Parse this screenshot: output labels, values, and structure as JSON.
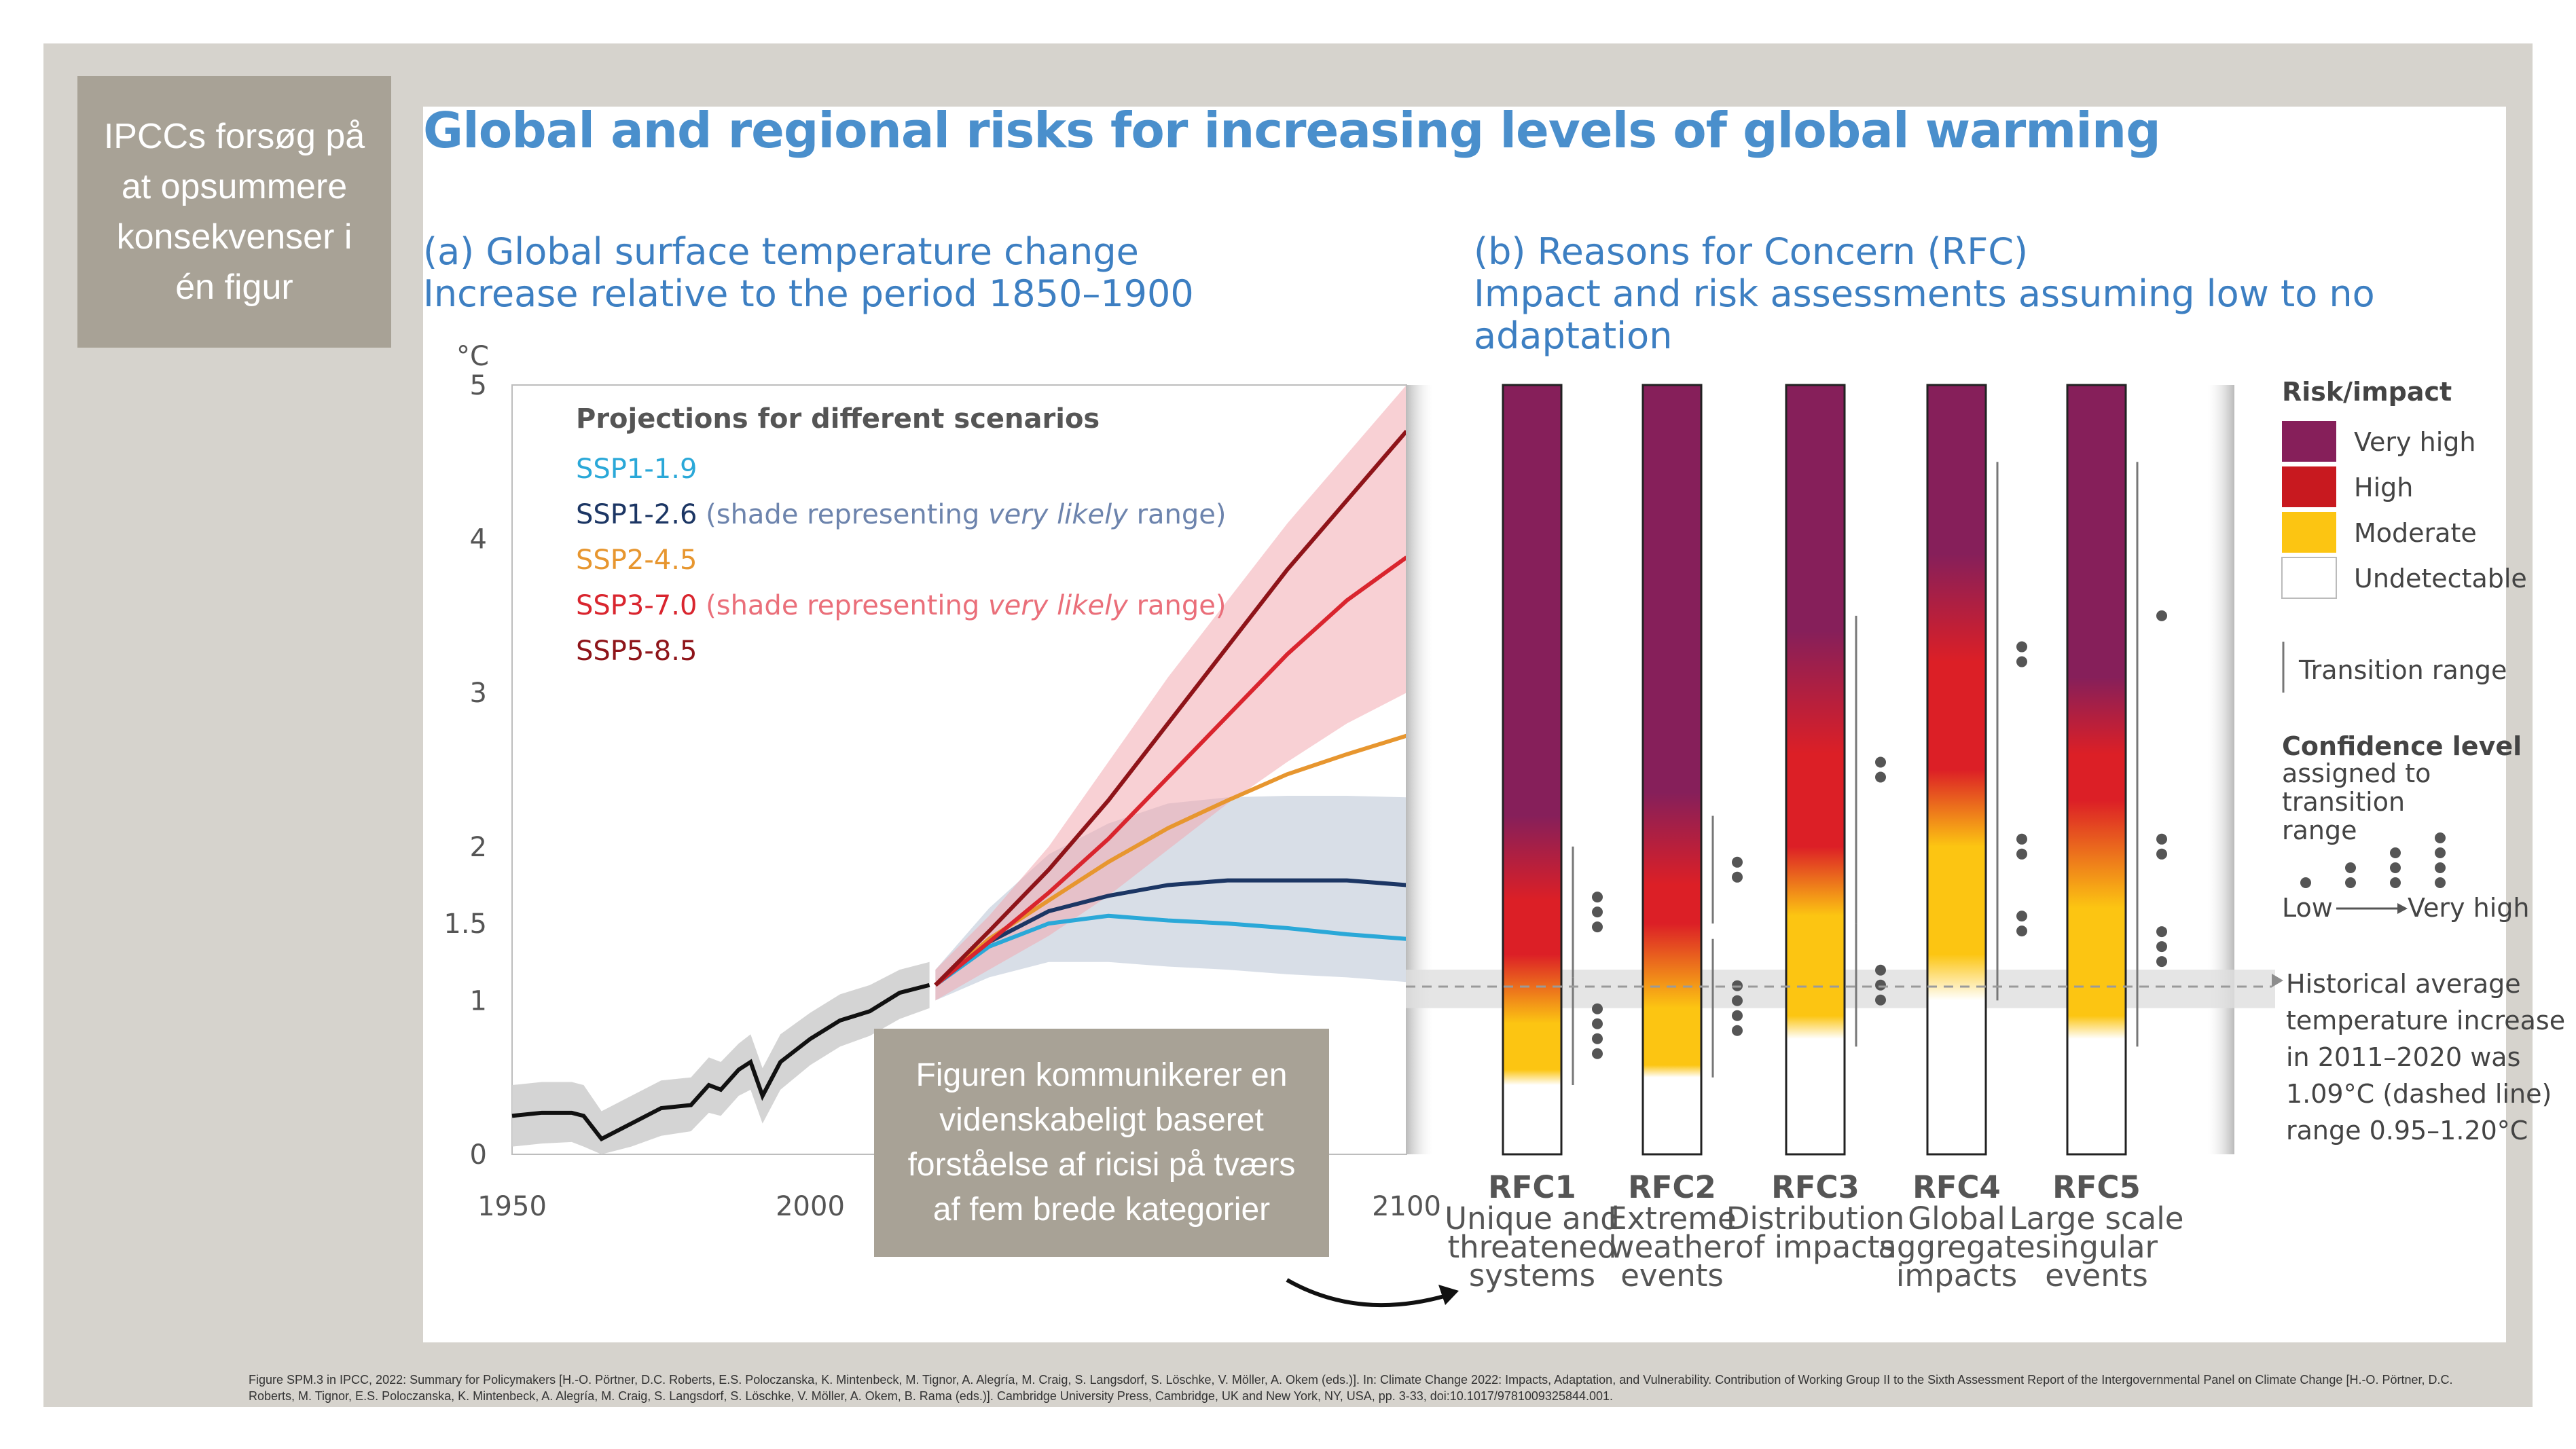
{
  "callouts": {
    "top": "IPCCs forsøg på\nat opsummere\nkonsekvenser i\nén figur",
    "middle": "Figuren kommunikerer en\nvidenskabeligt baseret\nforståelse af ricisi på tværs\naf fem brede kategorier"
  },
  "title": "Global and regional risks for increasing levels of global warming",
  "panel_a": {
    "heading": "(a) Global surface temperature change\n    Increase relative to the period 1850–1900",
    "unit": "°C",
    "legend_title": "Projections for different scenarios",
    "legend": [
      {
        "name": "SSP1-1.9",
        "note": "",
        "italic": "",
        "note_end": "",
        "color": "#2aa8d8"
      },
      {
        "name": "SSP1-2.6",
        "note": " (shade representing ",
        "italic": "very likely",
        "note_end": " range)",
        "color": "#1c3664"
      },
      {
        "name": "SSP2-4.5",
        "note": "",
        "italic": "",
        "note_end": "",
        "color": "#e7962f"
      },
      {
        "name": "SSP3-7.0",
        "note": " (shade representing ",
        "italic": "very likely",
        "note_end": " range)",
        "color": "#d9252e"
      },
      {
        "name": "SSP5-8.5",
        "note": "",
        "italic": "",
        "note_end": "",
        "color": "#8e1419"
      }
    ]
  },
  "panel_b": {
    "heading": "(b) Reasons for Concern (RFC)\n    Impact and risk assessments assuming low to no adaptation",
    "rfc": [
      {
        "id": "RFC1",
        "label": [
          "Unique and",
          "threatened",
          "systems"
        ]
      },
      {
        "id": "RFC2",
        "label": [
          "Extreme",
          "weather",
          "events"
        ]
      },
      {
        "id": "RFC3",
        "label": [
          "Distribution",
          "of impacts"
        ]
      },
      {
        "id": "RFC4",
        "label": [
          "Global",
          "aggregate",
          "impacts"
        ]
      },
      {
        "id": "RFC5",
        "label": [
          "Large scale",
          "singular",
          "events"
        ]
      }
    ],
    "risk_legend_title": "Risk/impact",
    "risk_levels": [
      {
        "label": "Very high",
        "color": "#861f5a"
      },
      {
        "label": "High",
        "color": "#c8191f"
      },
      {
        "label": "Moderate",
        "color": "#fcc512"
      },
      {
        "label": "Undetectable",
        "color": "#ffffff"
      }
    ],
    "transition_label": "Transition range",
    "confidence_title": "Confidence level",
    "confidence_sub": [
      "assigned to",
      "transition",
      "range"
    ],
    "confidence_low": "Low",
    "confidence_high": "Very high",
    "historical": [
      "Historical average",
      "temperature increase",
      "in 2011–2020 was",
      "1.09°C (dashed line)",
      "range 0.95–1.20°C"
    ]
  },
  "credit": "Figure SPM.3 in IPCC, 2022: Summary for Policymakers [H.-O. Pörtner, D.C. Roberts, E.S. Poloczanska, K. Mintenbeck, M. Tignor, A. Alegría, M. Craig, S. Langsdorf, S. Löschke, V. Möller, A. Okem (eds.)]. In: Climate Change 2022: Impacts, Adaptation, and Vulnerability. Contribution of Working Group II to the Sixth Assessment Report of the Intergovernmental Panel on Climate Change [H.-O. Pörtner, D.C. Roberts, M. Tignor, E.S. Poloczanska, K. Mintenbeck, A. Alegría, M. Craig, S. Langsdorf, S. Löschke, V. Möller, A. Okem, B. Rama (eds.)]. Cambridge University Press, Cambridge, UK and New York, NY, USA, pp. 3-33, doi:10.1017/9781009325844.001.",
  "chart_data": [
    {
      "type": "line",
      "ylabel": "°C",
      "xlim": [
        1950,
        2100
      ],
      "ylim": [
        0,
        5
      ],
      "xticks": [
        1950,
        2000,
        2100
      ],
      "yticks": [
        0,
        1,
        1.5,
        2,
        3,
        4,
        5
      ],
      "historical": {
        "x": [
          1950,
          1955,
          1960,
          1962,
          1965,
          1970,
          1975,
          1980,
          1983,
          1985,
          1988,
          1990,
          1992,
          1995,
          2000,
          2005,
          2010,
          2015,
          2020
        ],
        "y": [
          0.25,
          0.27,
          0.27,
          0.25,
          0.1,
          0.2,
          0.3,
          0.32,
          0.45,
          0.42,
          0.55,
          0.6,
          0.38,
          0.6,
          0.75,
          0.87,
          0.93,
          1.05,
          1.1
        ],
        "band_low": [
          0.05,
          0.07,
          0.08,
          0.05,
          0.0,
          0.05,
          0.12,
          0.15,
          0.27,
          0.25,
          0.38,
          0.42,
          0.2,
          0.42,
          0.58,
          0.7,
          0.77,
          0.88,
          0.95
        ],
        "band_high": [
          0.45,
          0.47,
          0.47,
          0.45,
          0.28,
          0.38,
          0.48,
          0.5,
          0.63,
          0.6,
          0.72,
          0.78,
          0.56,
          0.78,
          0.92,
          1.04,
          1.1,
          1.2,
          1.25
        ]
      },
      "x": [
        2021,
        2030,
        2040,
        2050,
        2060,
        2070,
        2080,
        2090,
        2100
      ],
      "series": [
        {
          "name": "SSP1-1.9",
          "color": "#2aa8d8",
          "values": [
            1.1,
            1.35,
            1.5,
            1.55,
            1.52,
            1.5,
            1.47,
            1.43,
            1.4
          ]
        },
        {
          "name": "SSP1-2.6",
          "color": "#1c3664",
          "values": [
            1.1,
            1.38,
            1.58,
            1.68,
            1.75,
            1.78,
            1.78,
            1.78,
            1.75
          ],
          "band_low": [
            1.0,
            1.15,
            1.25,
            1.25,
            1.22,
            1.2,
            1.17,
            1.15,
            1.12
          ],
          "band_high": [
            1.2,
            1.6,
            1.95,
            2.15,
            2.28,
            2.32,
            2.33,
            2.33,
            2.32
          ]
        },
        {
          "name": "SSP2-4.5",
          "color": "#e7962f",
          "values": [
            1.1,
            1.4,
            1.65,
            1.9,
            2.12,
            2.3,
            2.47,
            2.6,
            2.72
          ]
        },
        {
          "name": "SSP3-7.0",
          "color": "#d9252e",
          "values": [
            1.1,
            1.38,
            1.7,
            2.05,
            2.45,
            2.85,
            3.25,
            3.6,
            3.88
          ],
          "band_low": [
            1.0,
            1.2,
            1.42,
            1.68,
            1.98,
            2.28,
            2.55,
            2.8,
            3.0
          ],
          "band_high": [
            1.2,
            1.55,
            2.0,
            2.55,
            3.1,
            3.6,
            4.1,
            4.55,
            5.0
          ]
        },
        {
          "name": "SSP5-8.5",
          "color": "#8e1419",
          "values": [
            1.1,
            1.45,
            1.85,
            2.3,
            2.8,
            3.3,
            3.8,
            4.25,
            4.7
          ]
        }
      ]
    },
    {
      "type": "heatmap",
      "ylabel": "°C",
      "ylim": [
        0,
        5
      ],
      "categories": [
        "RFC1",
        "RFC2",
        "RFC3",
        "RFC4",
        "RFC5"
      ],
      "historical_average": 1.09,
      "historical_range": [
        0.95,
        1.2
      ],
      "bars": [
        {
          "stops": [
            [
              0.0,
              "undetectable"
            ],
            [
              0.45,
              "undetectable"
            ],
            [
              0.55,
              "moderate"
            ],
            [
              0.85,
              "moderate"
            ],
            [
              1.3,
              "high"
            ],
            [
              1.65,
              "high"
            ],
            [
              2.2,
              "very_high"
            ],
            [
              5.0,
              "very_high"
            ]
          ],
          "transitions": [
            {
              "from": 0.45,
              "to": 1.15,
              "confidence": 4
            },
            {
              "from": 1.15,
              "to": 2.0,
              "confidence": 3
            }
          ]
        },
        {
          "stops": [
            [
              0.0,
              "undetectable"
            ],
            [
              0.5,
              "undetectable"
            ],
            [
              0.58,
              "moderate"
            ],
            [
              0.95,
              "moderate"
            ],
            [
              1.5,
              "high"
            ],
            [
              1.75,
              "high"
            ],
            [
              2.35,
              "very_high"
            ],
            [
              5.0,
              "very_high"
            ]
          ],
          "transitions": [
            {
              "from": 0.5,
              "to": 1.4,
              "confidence": 4
            },
            {
              "from": 1.5,
              "to": 2.2,
              "confidence": 2
            }
          ]
        },
        {
          "stops": [
            [
              0.0,
              "undetectable"
            ],
            [
              0.75,
              "undetectable"
            ],
            [
              0.9,
              "moderate"
            ],
            [
              1.55,
              "moderate"
            ],
            [
              2.0,
              "high"
            ],
            [
              2.6,
              "high"
            ],
            [
              3.4,
              "very_high"
            ],
            [
              5.0,
              "very_high"
            ]
          ],
          "transitions": [
            {
              "from": 0.7,
              "to": 1.5,
              "confidence": 3
            },
            {
              "from": 1.5,
              "to": 3.5,
              "confidence": 2
            }
          ]
        },
        {
          "stops": [
            [
              0.0,
              "undetectable"
            ],
            [
              1.0,
              "undetectable"
            ],
            [
              1.3,
              "moderate"
            ],
            [
              2.0,
              "moderate"
            ],
            [
              2.5,
              "high"
            ],
            [
              3.2,
              "high"
            ],
            [
              3.9,
              "very_high"
            ],
            [
              5.0,
              "very_high"
            ]
          ],
          "transitions": [
            {
              "from": 1.0,
              "to": 2.0,
              "confidence": 2
            },
            {
              "from": 1.5,
              "to": 2.5,
              "confidence": 2
            },
            {
              "from": 2.0,
              "to": 4.5,
              "confidence": 2
            }
          ]
        },
        {
          "stops": [
            [
              0.0,
              "undetectable"
            ],
            [
              0.75,
              "undetectable"
            ],
            [
              0.9,
              "moderate"
            ],
            [
              1.6,
              "moderate"
            ],
            [
              2.3,
              "high"
            ],
            [
              2.6,
              "high"
            ],
            [
              3.1,
              "very_high"
            ],
            [
              5.0,
              "very_high"
            ]
          ],
          "transitions": [
            {
              "from": 0.7,
              "to": 2.0,
              "confidence": 3
            },
            {
              "from": 1.5,
              "to": 2.5,
              "confidence": 2
            },
            {
              "from": 2.5,
              "to": 4.5,
              "confidence": 1
            }
          ]
        }
      ]
    }
  ]
}
